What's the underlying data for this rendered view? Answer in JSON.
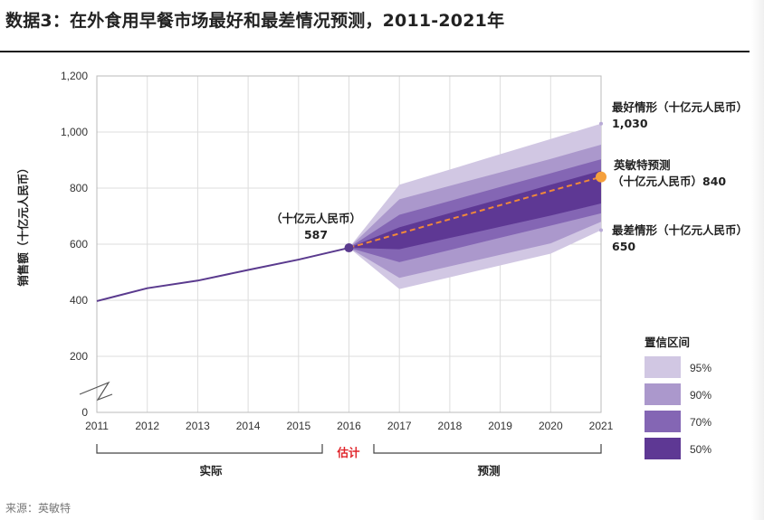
{
  "title": "数据3：在外食用早餐市场最好和最差情况预测，2011-2021年",
  "source": "来源：英敏特",
  "chart_data": {
    "type": "line",
    "ylabel": "销售额（十亿元人民币）",
    "ylim": [
      0,
      1200
    ],
    "yticks": [
      "0",
      "200",
      "400",
      "600",
      "800",
      "1,000",
      "1,200"
    ],
    "yticks_values": [
      0,
      200,
      400,
      600,
      800,
      1000,
      1200
    ],
    "x": [
      "2011",
      "2012",
      "2013",
      "2014",
      "2015",
      "2016",
      "2017",
      "2018",
      "2019",
      "2020",
      "2021"
    ],
    "y_break": true,
    "actual": {
      "years": [
        2011,
        2012,
        2013,
        2014,
        2015,
        2016
      ],
      "values": [
        397,
        443,
        470,
        508,
        545,
        587
      ]
    },
    "forecast": {
      "years": [
        2016,
        2017,
        2018,
        2019,
        2020,
        2021
      ],
      "values": [
        587,
        638,
        689,
        739,
        790,
        840
      ]
    },
    "bands": [
      {
        "label": "95%",
        "color": "#d1c7e3",
        "upper": [
          587,
          812,
          866,
          921,
          975,
          1030
        ],
        "lower": [
          587,
          440,
          482,
          524,
          566,
          650
        ]
      },
      {
        "label": "90%",
        "color": "#ab98cc",
        "upper": [
          587,
          760,
          808,
          856,
          904,
          955
        ],
        "lower": [
          587,
          480,
          521,
          562,
          603,
          680
        ]
      },
      {
        "label": "70%",
        "color": "#8466b4",
        "upper": [
          587,
          705,
          754,
          804,
          853,
          903
        ],
        "lower": [
          587,
          536,
          579,
          623,
          666,
          710
        ]
      },
      {
        "label": "50%",
        "color": "#5e3894",
        "upper": [
          587,
          660,
          711,
          761,
          812,
          862
        ],
        "lower": [
          587,
          582,
          622,
          662,
          702,
          745
        ]
      }
    ],
    "colors": {
      "actual_line": "#5a3a8e",
      "forecast_line": "#f0883a",
      "marker_2016": "#5a3a8e",
      "marker_2021": "#f5a03c"
    },
    "annotations": {
      "best_label": "最好情形（十亿元人民币）",
      "best_value": "1,030",
      "forecast_label_1": "英敏特预测",
      "forecast_label_2": "（十亿元人民币）840",
      "worst_label": "最差情形（十亿元人民币）",
      "worst_value": "650",
      "point_label": "（十亿元人民币）",
      "point_value": "587"
    },
    "legend_title": "置信区间",
    "periods": {
      "actual": "实际",
      "estimate": "估计",
      "forecast": "预测"
    }
  }
}
